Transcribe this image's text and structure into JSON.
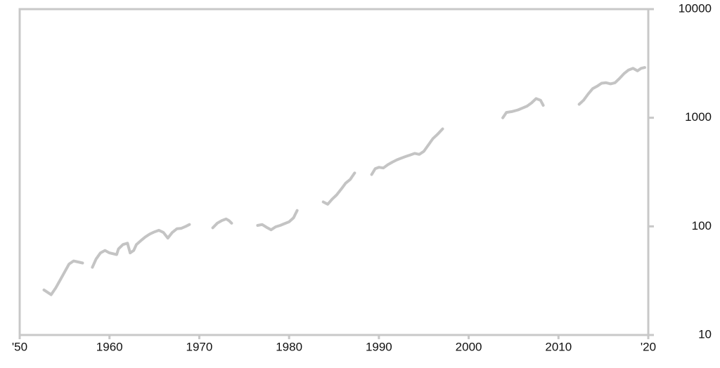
{
  "chart_data": {
    "type": "line",
    "x": [
      1952.7,
      1953.5,
      1954,
      1954.5,
      1955,
      1955.5,
      1956,
      1956.5,
      1957,
      1957.6,
      1958.1,
      1958.5,
      1959,
      1959.5,
      1960,
      1960.8,
      1961,
      1961.5,
      1962,
      1962.3,
      1962.7,
      1963,
      1963.5,
      1964,
      1964.5,
      1965,
      1965.5,
      1966,
      1966.5,
      1967,
      1967.5,
      1968,
      1968.5,
      1968.9,
      1970,
      1971.5,
      1972,
      1972.5,
      1973,
      1973.3,
      1973.6,
      1975,
      1976.5,
      1977,
      1977.5,
      1978,
      1978.5,
      1979,
      1979.5,
      1980,
      1980.5,
      1980.9,
      1982.5,
      1983.8,
      1984.3,
      1984.8,
      1985.3,
      1985.8,
      1986.3,
      1986.8,
      1987.3,
      1988.2,
      1989.2,
      1989.6,
      1990,
      1990.5,
      1991,
      1991.5,
      1992,
      1992.5,
      1993,
      1993.5,
      1994,
      1994.5,
      1995,
      1995.5,
      1996,
      1996.5,
      1997.1,
      2000.5,
      2003.8,
      2004.2,
      2004.8,
      2005.5,
      2006,
      2006.5,
      2007,
      2007.5,
      2008,
      2008.3,
      2010,
      2012.3,
      2012.8,
      2013.3,
      2013.8,
      2014.3,
      2014.8,
      2015.3,
      2015.8,
      2016.3,
      2016.8,
      2017.3,
      2017.8,
      2018.3,
      2018.8,
      2019.2,
      2019.6
    ],
    "series": [
      {
        "color": "#c4c4c4",
        "values": [
          26,
          23.5,
          27,
          32,
          38,
          45,
          48,
          47,
          46,
          null,
          42,
          50,
          57,
          60,
          57,
          55,
          62,
          68,
          70,
          57,
          60,
          68,
          74,
          80,
          85,
          89,
          92,
          88,
          78,
          88,
          95,
          96,
          100,
          104,
          null,
          97,
          107,
          113,
          117,
          113,
          107,
          null,
          102,
          104,
          98,
          93,
          99,
          102,
          106,
          110,
          120,
          140,
          null,
          168,
          160,
          178,
          195,
          220,
          250,
          270,
          310,
          null,
          300,
          340,
          350,
          345,
          370,
          390,
          410,
          425,
          440,
          455,
          470,
          460,
          490,
          560,
          640,
          700,
          790,
          null,
          1000,
          1120,
          1140,
          1180,
          1230,
          1280,
          1370,
          1500,
          1450,
          1300,
          null,
          1330,
          1450,
          1650,
          1850,
          1950,
          2080,
          2100,
          2050,
          2100,
          2300,
          2550,
          2750,
          2850,
          2700,
          2850,
          2900
        ]
      }
    ],
    "xlim": [
      1950,
      2020
    ],
    "xticks": [
      {
        "value": 1950,
        "label": "'50"
      },
      1960,
      1970,
      1980,
      1990,
      2000,
      2010,
      {
        "value": 2020,
        "label": "'20"
      }
    ],
    "ylim": [
      10,
      10000
    ],
    "yticks": [
      10,
      100,
      1000,
      10000
    ],
    "log_y": true
  }
}
